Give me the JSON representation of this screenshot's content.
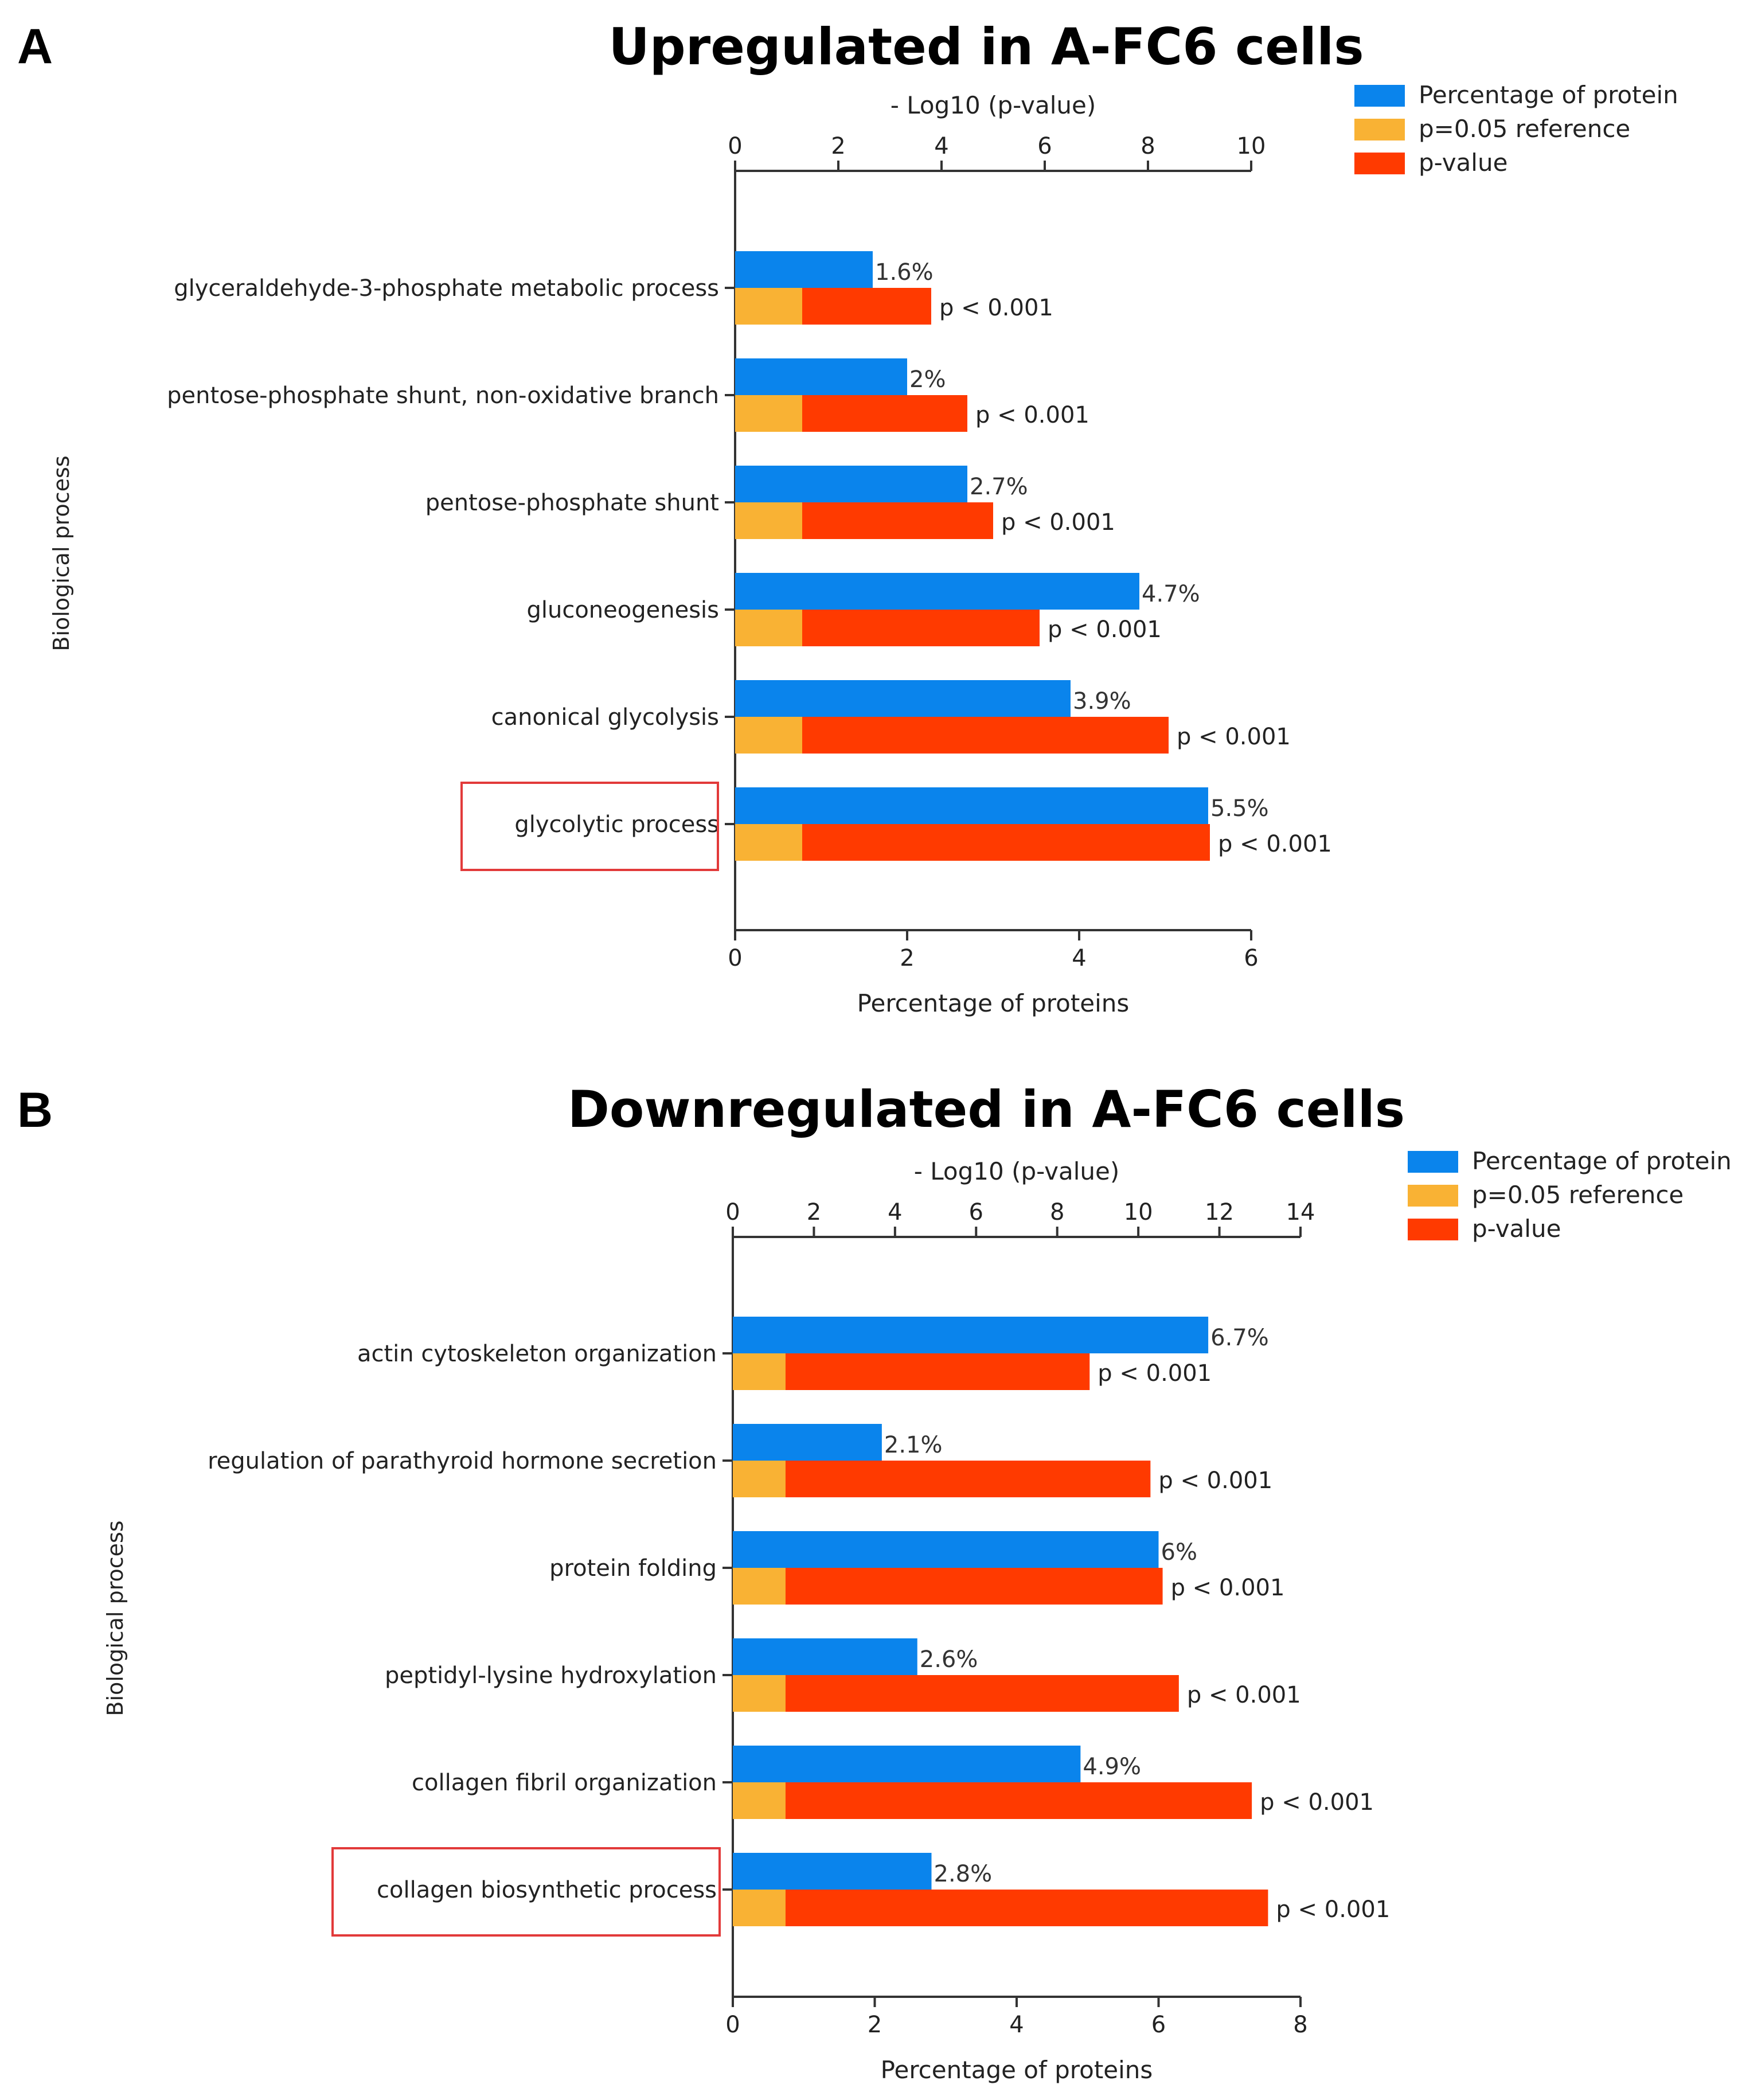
{
  "chart_data": [
    {
      "type": "bar",
      "panel": "A",
      "title": "Upregulated in A-FC6 cells",
      "ylabel": "Biological process",
      "xlabel_bottom": "Percentage of proteins",
      "xlabel_top": "- Log10 (p-value)",
      "bottom_axis": {
        "min": 0,
        "max": 6,
        "ticks": [
          0,
          2,
          4,
          6
        ]
      },
      "top_axis": {
        "min": 0,
        "max": 10,
        "ticks": [
          0,
          2,
          4,
          6,
          8,
          10
        ]
      },
      "legend": [
        "Percentage of protein",
        "p=0.05 reference",
        "p-value"
      ],
      "legend_position": "top-right",
      "categories": [
        "glyceraldehyde-3-phosphate metabolic process",
        "pentose-phosphate shunt, non-oxidative branch",
        "pentose-phosphate shunt",
        "gluconeogenesis",
        "canonical glycolysis",
        "glycolytic process"
      ],
      "highlighted_category": "glycolytic process",
      "series": [
        {
          "name": "Percentage of protein",
          "axis": "bottom",
          "values": [
            1.6,
            2.0,
            2.7,
            4.7,
            3.9,
            5.5
          ],
          "labels": [
            "1.6%",
            "2%",
            "2.7%",
            "4.7%",
            "3.9%",
            "5.5%"
          ]
        },
        {
          "name": "p=0.05 reference",
          "axis": "top",
          "values": [
            1.3,
            1.3,
            1.3,
            1.3,
            1.3,
            1.3
          ]
        },
        {
          "name": "p-value",
          "axis": "top",
          "values": [
            3.8,
            4.5,
            5.0,
            5.9,
            8.4,
            9.2
          ],
          "labels": [
            "p < 0.001",
            "p < 0.001",
            "p < 0.001",
            "p < 0.001",
            "p < 0.001",
            "p < 0.001"
          ]
        }
      ]
    },
    {
      "type": "bar",
      "panel": "B",
      "title": "Downregulated in A-FC6 cells",
      "ylabel": "Biological process",
      "xlabel_bottom": "Percentage of proteins",
      "xlabel_top": "- Log10 (p-value)",
      "bottom_axis": {
        "min": 0,
        "max": 8,
        "ticks": [
          0,
          2,
          4,
          6,
          8
        ]
      },
      "top_axis": {
        "min": 0,
        "max": 14,
        "ticks": [
          0,
          2,
          4,
          6,
          8,
          10,
          12,
          14
        ]
      },
      "legend": [
        "Percentage of protein",
        "p=0.05 reference",
        "p-value"
      ],
      "legend_position": "top-right",
      "categories": [
        "actin cytoskeleton organization",
        "regulation of parathyroid hormone secretion",
        "protein folding",
        "peptidyl-lysine hydroxylation",
        "collagen fibril organization",
        "collagen biosynthetic process"
      ],
      "highlighted_category": "collagen biosynthetic process",
      "series": [
        {
          "name": "Percentage of protein",
          "axis": "bottom",
          "values": [
            6.7,
            2.1,
            6.0,
            2.6,
            4.9,
            2.8
          ],
          "labels": [
            "6.7%",
            "2.1%",
            "6%",
            "2.6%",
            "4.9%",
            "2.8%"
          ]
        },
        {
          "name": "p=0.05 reference",
          "axis": "top",
          "values": [
            1.3,
            1.3,
            1.3,
            1.3,
            1.3,
            1.3
          ]
        },
        {
          "name": "p-value",
          "axis": "top",
          "values": [
            8.8,
            10.3,
            10.6,
            11.0,
            12.8,
            13.2
          ],
          "labels": [
            "p < 0.001",
            "p < 0.001",
            "p < 0.001",
            "p < 0.001",
            "p < 0.001",
            "p < 0.001"
          ]
        }
      ]
    }
  ],
  "colors": {
    "blue": "#0a84ec",
    "orange": "#f9b234",
    "red": "#ff3a00",
    "axis": "#333333",
    "text": "#222222",
    "highlight_box": "#e23a3a"
  }
}
